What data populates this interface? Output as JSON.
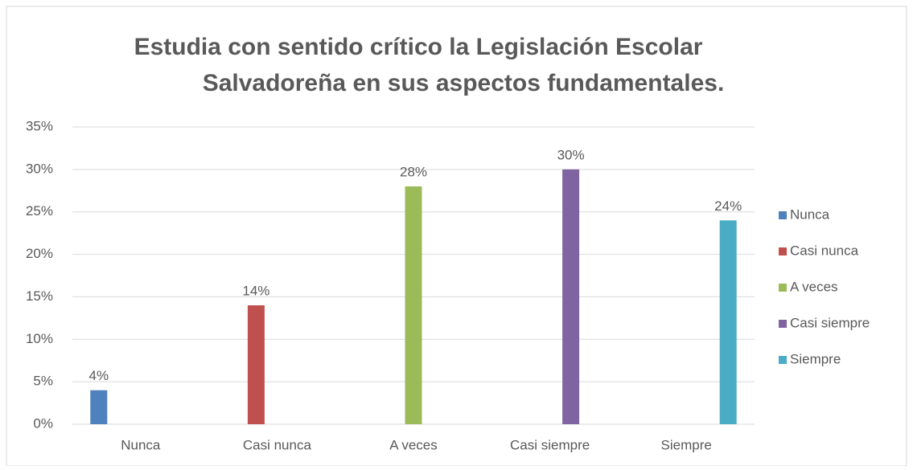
{
  "chart_data": {
    "type": "bar",
    "title": [
      "Estudia con sentido crítico la Legislación Escolar",
      "Salvadoreña en sus aspectos fundamentales."
    ],
    "categories": [
      "Nunca",
      "Casi nunca",
      "A veces",
      "Casi siempre",
      "Siempre"
    ],
    "series": [
      {
        "name": "Nunca",
        "color": "#4f81bd",
        "values": [
          4,
          null,
          null,
          null,
          null
        ],
        "value_labels": [
          "4%",
          null,
          null,
          null,
          null
        ]
      },
      {
        "name": "Casi nunca",
        "color": "#c0504d",
        "values": [
          null,
          14,
          null,
          null,
          null
        ],
        "value_labels": [
          null,
          "14%",
          null,
          null,
          null
        ]
      },
      {
        "name": "A veces",
        "color": "#9bbb59",
        "values": [
          null,
          null,
          28,
          null,
          null
        ],
        "value_labels": [
          null,
          null,
          "28%",
          null,
          null
        ]
      },
      {
        "name": "Casi siempre",
        "color": "#8064a2",
        "values": [
          null,
          null,
          null,
          30,
          null
        ],
        "value_labels": [
          null,
          null,
          null,
          "30%",
          null
        ]
      },
      {
        "name": "Siempre",
        "color": "#4bacc6",
        "values": [
          null,
          null,
          null,
          null,
          24
        ],
        "value_labels": [
          null,
          null,
          null,
          null,
          "24%"
        ]
      }
    ],
    "ylim": [
      0,
      35
    ],
    "yticks": [
      {
        "value": 0,
        "label": "0%"
      },
      {
        "value": 5,
        "label": "5%"
      },
      {
        "value": 10,
        "label": "10%"
      },
      {
        "value": 15,
        "label": "15%"
      },
      {
        "value": 20,
        "label": "20%"
      },
      {
        "value": 25,
        "label": "25%"
      },
      {
        "value": 30,
        "label": "30%"
      },
      {
        "value": 35,
        "label": "35%"
      }
    ],
    "grid": true,
    "legend": "right"
  }
}
